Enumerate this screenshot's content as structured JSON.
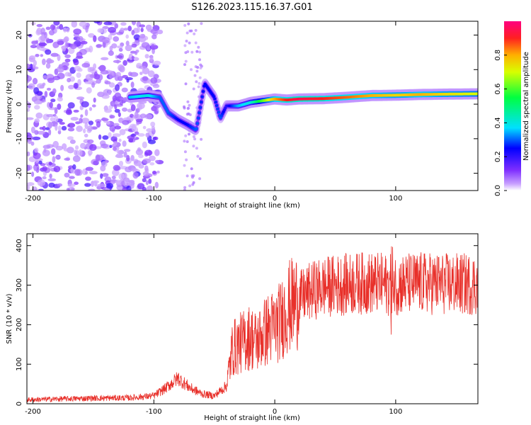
{
  "title": "S126.2023.115.16.37.G01",
  "chart_data": [
    {
      "type": "heatmap",
      "title": "S126.2023.115.16.37.G01",
      "xlabel": "Height of straight line (km)",
      "ylabel": "Frequency (Hz)",
      "xlim": [
        -205,
        168
      ],
      "ylim": [
        -25,
        24
      ],
      "x_ticks": [
        -200,
        -100,
        0,
        100
      ],
      "y_ticks": [
        -20,
        -10,
        0,
        10,
        20
      ],
      "colorbar": {
        "label": "Normalized spectral amplitude",
        "range": [
          0,
          1
        ],
        "ticks": [
          0.0,
          0.2,
          0.4,
          0.6,
          0.8
        ],
        "tick_labels": [
          "0.0",
          "0.2",
          "0.4",
          "0.6",
          "0.8"
        ]
      },
      "ridge": {
        "x": [
          -120,
          -105,
          -95,
          -88,
          -80,
          -72,
          -65,
          -58,
          -50,
          -45,
          -40,
          -30,
          -20,
          -10,
          0,
          10,
          20,
          40,
          60,
          80,
          100,
          120,
          140,
          168
        ],
        "y": [
          2.0,
          2.5,
          2.0,
          -2.5,
          -4.5,
          -6.0,
          -7.5,
          6.0,
          2.0,
          -4.0,
          -0.5,
          -0.5,
          0.5,
          1.0,
          1.5,
          1.2,
          1.5,
          1.6,
          2.0,
          2.5,
          2.6,
          2.8,
          2.9,
          3.0
        ],
        "amplitude": [
          0.35,
          0.4,
          0.3,
          0.3,
          0.25,
          0.25,
          0.3,
          0.25,
          0.25,
          0.3,
          0.2,
          0.35,
          0.4,
          0.6,
          0.8,
          0.9,
          0.95,
          0.9,
          0.85,
          0.8,
          0.75,
          0.8,
          0.75,
          0.7
        ]
      }
    },
    {
      "type": "line",
      "xlabel": "Height of straight line (km)",
      "ylabel": "SNR (10 * v/v)",
      "xlim": [
        -205,
        168
      ],
      "ylim": [
        0,
        430
      ],
      "x_ticks": [
        -200,
        -100,
        0,
        100
      ],
      "y_ticks": [
        0,
        100,
        200,
        300,
        400
      ],
      "series": [
        {
          "color": "#e8302a",
          "x": [
            -205,
            -180,
            -150,
            -120,
            -100,
            -90,
            -80,
            -70,
            -60,
            -50,
            -40,
            -35,
            -30,
            -25,
            -20,
            -15,
            -10,
            -5,
            0,
            5,
            10,
            20,
            30,
            40,
            50,
            60,
            70,
            80,
            90,
            95,
            100,
            120,
            140,
            168
          ],
          "y": [
            10,
            12,
            14,
            15,
            20,
            40,
            65,
            40,
            25,
            20,
            45,
            140,
            150,
            160,
            170,
            155,
            175,
            190,
            195,
            210,
            240,
            265,
            285,
            295,
            300,
            302,
            305,
            305,
            303,
            300,
            302,
            305,
            303,
            302
          ]
        }
      ]
    }
  ]
}
